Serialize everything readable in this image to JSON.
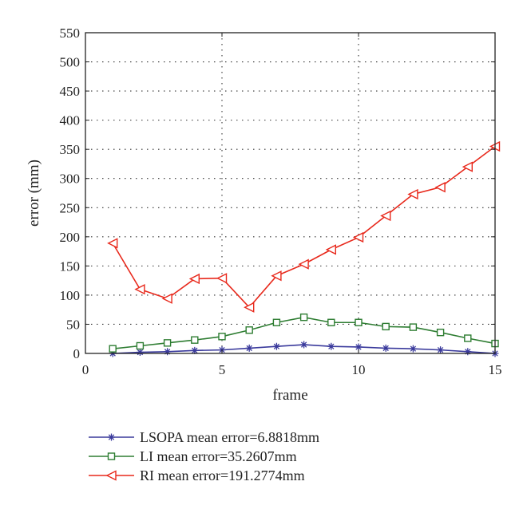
{
  "chart_data": {
    "type": "line",
    "xlabel": "frame",
    "ylabel": "error (mm)",
    "xlim": [
      0,
      15
    ],
    "ylim": [
      0,
      550
    ],
    "xticks": [
      0,
      5,
      10,
      15
    ],
    "yticks": [
      0,
      50,
      100,
      150,
      200,
      250,
      300,
      350,
      400,
      450,
      500,
      550
    ],
    "grid": "dotted",
    "legend_position": "bottom-outside",
    "x": [
      1,
      2,
      3,
      4,
      5,
      6,
      7,
      8,
      9,
      10,
      11,
      12,
      13,
      14,
      15
    ],
    "series": [
      {
        "name": "LSOPA mean error=6.8818mm",
        "color": "#3a3a9c",
        "marker": "asterisk",
        "values": [
          0,
          2,
          3,
          5,
          6,
          9,
          12,
          15,
          12,
          11,
          9,
          8,
          6,
          3,
          0
        ]
      },
      {
        "name": "LI mean error=35.2607mm",
        "color": "#2e7d32",
        "marker": "square",
        "values": [
          8,
          13,
          18,
          23,
          29,
          40,
          53,
          62,
          53,
          53,
          46,
          45,
          36,
          26,
          17
        ]
      },
      {
        "name": "RI mean error=191.2774mm",
        "color": "#e8291c",
        "marker": "triangle-left",
        "values": [
          189,
          110,
          94,
          128,
          129,
          79,
          133,
          153,
          178,
          199,
          236,
          273,
          285,
          320,
          355
        ]
      }
    ]
  }
}
